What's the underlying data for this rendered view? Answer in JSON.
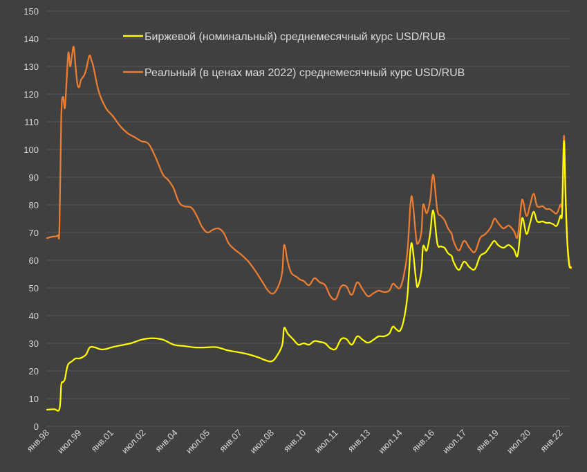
{
  "chart_data": {
    "type": "line",
    "xlabel": "",
    "ylabel": "",
    "ylim": [
      0,
      150
    ],
    "y_ticks": [
      0,
      10,
      20,
      30,
      40,
      50,
      60,
      70,
      80,
      90,
      100,
      110,
      120,
      130,
      140,
      150
    ],
    "grid": "horizontal",
    "legend_position": "top-center",
    "x_range": [
      "1998-01",
      "2022-07"
    ],
    "x_tick_labels": [
      {
        "label": "янв.98",
        "date": "1998-01"
      },
      {
        "label": "июл.99",
        "date": "1999-07"
      },
      {
        "label": "янв.01",
        "date": "2001-01"
      },
      {
        "label": "июл.02",
        "date": "2002-07"
      },
      {
        "label": "янв.04",
        "date": "2004-01"
      },
      {
        "label": "июл.05",
        "date": "2005-07"
      },
      {
        "label": "янв.07",
        "date": "2007-01"
      },
      {
        "label": "июл.08",
        "date": "2008-07"
      },
      {
        "label": "янв.10",
        "date": "2010-01"
      },
      {
        "label": "июл.11",
        "date": "2011-07"
      },
      {
        "label": "янв.13",
        "date": "2013-01"
      },
      {
        "label": "июл.14",
        "date": "2014-07"
      },
      {
        "label": "янв.16",
        "date": "2016-01"
      },
      {
        "label": "июл.17",
        "date": "2017-07"
      },
      {
        "label": "янв.19",
        "date": "2019-01"
      },
      {
        "label": "июл.20",
        "date": "2020-07"
      },
      {
        "label": "янв.22",
        "date": "2022-01"
      }
    ],
    "series": [
      {
        "name": "Биржевой (номинальный) среднемесячный курс USD/RUB",
        "color": "#ffff00",
        "points": [
          [
            "1998-01",
            6.0
          ],
          [
            "1998-05",
            6.2
          ],
          [
            "1998-08",
            6.3
          ],
          [
            "1998-09",
            15
          ],
          [
            "1998-10",
            16
          ],
          [
            "1998-11",
            17
          ],
          [
            "1998-12",
            20.5
          ],
          [
            "1999-01",
            22.5
          ],
          [
            "1999-03",
            23.5
          ],
          [
            "1999-05",
            24.5
          ],
          [
            "1999-07",
            24.5
          ],
          [
            "1999-09",
            25
          ],
          [
            "1999-11",
            26
          ],
          [
            "2000-01",
            28.5
          ],
          [
            "2000-04",
            28.5
          ],
          [
            "2000-07",
            27.8
          ],
          [
            "2000-10",
            27.9
          ],
          [
            "2001-01",
            28.5
          ],
          [
            "2001-06",
            29.2
          ],
          [
            "2001-12",
            30
          ],
          [
            "2002-06",
            31.3
          ],
          [
            "2002-12",
            31.8
          ],
          [
            "2003-06",
            31.3
          ],
          [
            "2003-12",
            29.5
          ],
          [
            "2004-06",
            29
          ],
          [
            "2004-12",
            28.5
          ],
          [
            "2005-06",
            28.5
          ],
          [
            "2005-12",
            28.6
          ],
          [
            "2006-06",
            27.5
          ],
          [
            "2006-12",
            26.8
          ],
          [
            "2007-06",
            26
          ],
          [
            "2007-12",
            24.8
          ],
          [
            "2008-03",
            24
          ],
          [
            "2008-07",
            23.5
          ],
          [
            "2008-10",
            25.5
          ],
          [
            "2009-01",
            29.5
          ],
          [
            "2009-02",
            35.5
          ],
          [
            "2009-04",
            33.5
          ],
          [
            "2009-07",
            31.5
          ],
          [
            "2009-10",
            29.5
          ],
          [
            "2010-01",
            30
          ],
          [
            "2010-04",
            29.5
          ],
          [
            "2010-07",
            30.8
          ],
          [
            "2010-10",
            30.5
          ],
          [
            "2011-01",
            30
          ],
          [
            "2011-04",
            28.2
          ],
          [
            "2011-07",
            28.0
          ],
          [
            "2011-10",
            31.5
          ],
          [
            "2012-01",
            31.5
          ],
          [
            "2012-04",
            29.5
          ],
          [
            "2012-07",
            32.5
          ],
          [
            "2012-10",
            31.3
          ],
          [
            "2013-01",
            30.2
          ],
          [
            "2013-04",
            31.2
          ],
          [
            "2013-07",
            32.5
          ],
          [
            "2013-10",
            32.5
          ],
          [
            "2014-01",
            33.5
          ],
          [
            "2014-03",
            36
          ],
          [
            "2014-05",
            35
          ],
          [
            "2014-07",
            34.5
          ],
          [
            "2014-09",
            38
          ],
          [
            "2014-11",
            46
          ],
          [
            "2014-12",
            55
          ],
          [
            "2015-01",
            64.5
          ],
          [
            "2015-02",
            65
          ],
          [
            "2015-04",
            53
          ],
          [
            "2015-05",
            50.5
          ],
          [
            "2015-07",
            56
          ],
          [
            "2015-08",
            65
          ],
          [
            "2015-10",
            63.5
          ],
          [
            "2015-12",
            70
          ],
          [
            "2016-01",
            76.5
          ],
          [
            "2016-02",
            77
          ],
          [
            "2016-04",
            66
          ],
          [
            "2016-06",
            65
          ],
          [
            "2016-08",
            64.5
          ],
          [
            "2016-10",
            62.5
          ],
          [
            "2016-12",
            61.5
          ],
          [
            "2017-01",
            59.5
          ],
          [
            "2017-04",
            56.5
          ],
          [
            "2017-07",
            59.5
          ],
          [
            "2017-10",
            57.5
          ],
          [
            "2018-01",
            56.8
          ],
          [
            "2018-04",
            61.5
          ],
          [
            "2018-07",
            62.8
          ],
          [
            "2018-10",
            65.5
          ],
          [
            "2018-12",
            67
          ],
          [
            "2019-02",
            65.5
          ],
          [
            "2019-05",
            64.5
          ],
          [
            "2019-08",
            65.5
          ],
          [
            "2019-11",
            63.8
          ],
          [
            "2020-01",
            61.8
          ],
          [
            "2020-03",
            73
          ],
          [
            "2020-04",
            75
          ],
          [
            "2020-06",
            69.5
          ],
          [
            "2020-08",
            73.5
          ],
          [
            "2020-10",
            77.5
          ],
          [
            "2020-12",
            74
          ],
          [
            "2021-03",
            74
          ],
          [
            "2021-05",
            73.5
          ],
          [
            "2021-07",
            73.5
          ],
          [
            "2021-09",
            73
          ],
          [
            "2021-11",
            72.5
          ],
          [
            "2022-01",
            76
          ],
          [
            "2022-02",
            77.5
          ],
          [
            "2022-03",
            103
          ],
          [
            "2022-04",
            80
          ],
          [
            "2022-05",
            65
          ],
          [
            "2022-06",
            58
          ],
          [
            "2022-07",
            57.5
          ]
        ]
      },
      {
        "name": "Реальный (в ценах мая 2022) среднемесячный курс USD/RUB",
        "color": "#ed7d31",
        "points": [
          [
            "1998-01",
            68
          ],
          [
            "1998-04",
            68.5
          ],
          [
            "1998-07",
            69
          ],
          [
            "1998-08",
            72
          ],
          [
            "1998-09",
            112
          ],
          [
            "1998-10",
            119
          ],
          [
            "1998-11",
            115
          ],
          [
            "1998-12",
            125
          ],
          [
            "1999-01",
            135
          ],
          [
            "1999-02",
            130
          ],
          [
            "1999-03",
            134
          ],
          [
            "1999-04",
            137
          ],
          [
            "1999-05",
            130
          ],
          [
            "1999-06",
            124
          ],
          [
            "1999-07",
            122.5
          ],
          [
            "1999-08",
            125
          ],
          [
            "1999-09",
            126
          ],
          [
            "1999-10",
            127
          ],
          [
            "1999-11",
            129
          ],
          [
            "1999-12",
            132
          ],
          [
            "2000-01",
            134
          ],
          [
            "2000-02",
            132
          ],
          [
            "2000-03",
            130
          ],
          [
            "2000-06",
            121
          ],
          [
            "2000-10",
            115
          ],
          [
            "2001-02",
            112
          ],
          [
            "2001-06",
            108.5
          ],
          [
            "2001-10",
            106
          ],
          [
            "2002-02",
            104.5
          ],
          [
            "2002-06",
            103
          ],
          [
            "2002-10",
            102
          ],
          [
            "2003-02",
            97
          ],
          [
            "2003-06",
            91
          ],
          [
            "2003-09",
            89
          ],
          [
            "2003-12",
            86
          ],
          [
            "2004-03",
            81
          ],
          [
            "2004-06",
            79.5
          ],
          [
            "2004-10",
            79
          ],
          [
            "2005-01",
            76
          ],
          [
            "2005-04",
            72
          ],
          [
            "2005-07",
            70
          ],
          [
            "2005-10",
            71
          ],
          [
            "2006-01",
            71.5
          ],
          [
            "2006-04",
            70
          ],
          [
            "2006-07",
            66
          ],
          [
            "2006-10",
            64
          ],
          [
            "2007-02",
            62
          ],
          [
            "2007-06",
            59.5
          ],
          [
            "2007-10",
            56
          ],
          [
            "2008-02",
            52
          ],
          [
            "2008-05",
            49
          ],
          [
            "2008-08",
            48
          ],
          [
            "2008-11",
            51
          ],
          [
            "2009-01",
            56
          ],
          [
            "2009-02",
            65.5
          ],
          [
            "2009-04",
            59.5
          ],
          [
            "2009-06",
            55.5
          ],
          [
            "2009-09",
            54
          ],
          [
            "2009-11",
            53
          ],
          [
            "2010-01",
            52.5
          ],
          [
            "2010-04",
            51
          ],
          [
            "2010-07",
            53.5
          ],
          [
            "2010-10",
            52
          ],
          [
            "2011-01",
            51
          ],
          [
            "2011-04",
            47
          ],
          [
            "2011-07",
            46
          ],
          [
            "2011-10",
            50.5
          ],
          [
            "2012-01",
            50.5
          ],
          [
            "2012-04",
            47.5
          ],
          [
            "2012-07",
            52
          ],
          [
            "2012-10",
            49.5
          ],
          [
            "2013-01",
            47
          ],
          [
            "2013-04",
            48
          ],
          [
            "2013-07",
            49
          ],
          [
            "2013-10",
            48.5
          ],
          [
            "2014-01",
            49
          ],
          [
            "2014-03",
            51.5
          ],
          [
            "2014-05",
            50.5
          ],
          [
            "2014-07",
            50
          ],
          [
            "2014-09",
            54
          ],
          [
            "2014-11",
            62
          ],
          [
            "2014-12",
            71
          ],
          [
            "2015-01",
            81
          ],
          [
            "2015-02",
            82
          ],
          [
            "2015-04",
            68.5
          ],
          [
            "2015-05",
            66
          ],
          [
            "2015-07",
            70
          ],
          [
            "2015-08",
            80
          ],
          [
            "2015-10",
            77
          ],
          [
            "2015-12",
            82
          ],
          [
            "2016-01",
            89
          ],
          [
            "2016-02",
            90
          ],
          [
            "2016-04",
            78
          ],
          [
            "2016-06",
            76
          ],
          [
            "2016-08",
            74.5
          ],
          [
            "2016-10",
            71.5
          ],
          [
            "2016-12",
            69.5
          ],
          [
            "2017-01",
            67
          ],
          [
            "2017-04",
            63.5
          ],
          [
            "2017-07",
            67
          ],
          [
            "2017-10",
            64.5
          ],
          [
            "2018-01",
            63
          ],
          [
            "2018-04",
            68
          ],
          [
            "2018-07",
            69.5
          ],
          [
            "2018-10",
            72
          ],
          [
            "2018-12",
            75
          ],
          [
            "2019-02",
            73.5
          ],
          [
            "2019-05",
            71.5
          ],
          [
            "2019-08",
            72.5
          ],
          [
            "2019-11",
            70.5
          ],
          [
            "2020-01",
            68.5
          ],
          [
            "2020-03",
            80
          ],
          [
            "2020-04",
            81.5
          ],
          [
            "2020-06",
            76
          ],
          [
            "2020-08",
            80
          ],
          [
            "2020-10",
            84
          ],
          [
            "2020-12",
            79.5
          ],
          [
            "2021-03",
            79.5
          ],
          [
            "2021-05",
            78.5
          ],
          [
            "2021-07",
            78.5
          ],
          [
            "2021-09",
            77.5
          ],
          [
            "2021-11",
            77
          ],
          [
            "2022-01",
            80
          ],
          [
            "2022-02",
            81.5
          ],
          [
            "2022-03",
            105
          ],
          [
            "2022-04",
            82
          ],
          [
            "2022-05",
            66
          ],
          [
            "2022-06",
            59
          ],
          [
            "2022-07",
            57
          ]
        ]
      }
    ]
  }
}
